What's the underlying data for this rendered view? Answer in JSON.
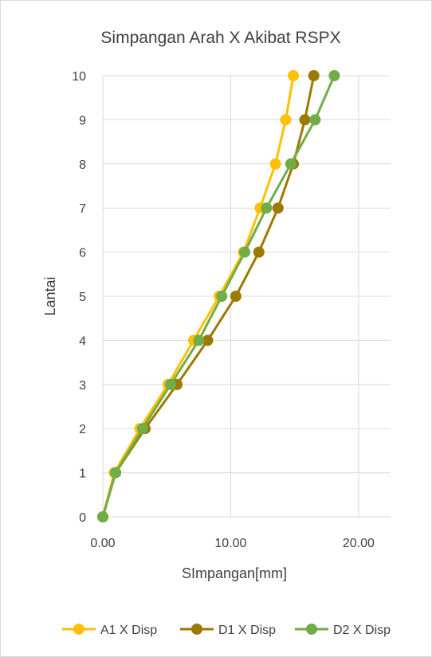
{
  "chart_data": {
    "type": "scatter",
    "title": "Simpangan Arah X Akibat RSPX",
    "xlabel": "SImpangan[mm]",
    "ylabel": "Lantai",
    "xlim": [
      0,
      22.5
    ],
    "ylim": [
      0,
      10
    ],
    "x_ticks": [
      "0.00",
      "10.00",
      "20.00"
    ],
    "y_ticks": [
      "0",
      "1",
      "2",
      "3",
      "4",
      "5",
      "6",
      "7",
      "8",
      "9",
      "10"
    ],
    "grid": true,
    "legend_position": "bottom",
    "series": [
      {
        "name": "A1 X Disp",
        "color": "#ffc000",
        "x": [
          0,
          0.9,
          2.9,
          5.1,
          7.1,
          9.1,
          11.0,
          12.3,
          13.5,
          14.3,
          14.9
        ],
        "y": [
          0,
          1,
          2,
          3,
          4,
          5,
          6,
          7,
          8,
          9,
          10
        ]
      },
      {
        "name": "D1 X Disp",
        "color": "#9c7a00",
        "x": [
          0,
          1.0,
          3.3,
          5.8,
          8.2,
          10.4,
          12.2,
          13.7,
          14.9,
          15.8,
          16.5
        ],
        "y": [
          0,
          1,
          2,
          3,
          4,
          5,
          6,
          7,
          8,
          9,
          10
        ]
      },
      {
        "name": "D2 X Disp",
        "color": "#70ad47",
        "x": [
          0,
          1.0,
          3.1,
          5.3,
          7.5,
          9.3,
          11.1,
          12.8,
          14.7,
          16.6,
          18.1
        ],
        "y": [
          0,
          1,
          2,
          3,
          4,
          5,
          6,
          7,
          8,
          9,
          10
        ]
      }
    ]
  }
}
